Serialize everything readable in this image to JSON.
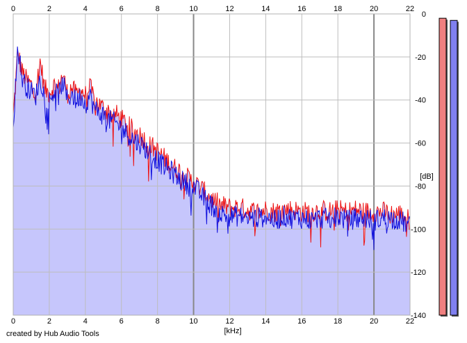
{
  "chart_data": {
    "type": "line",
    "title": "",
    "xlabel": "[kHz]",
    "ylabel": "[dB]",
    "xlim": [
      0,
      22
    ],
    "ylim": [
      -140,
      0
    ],
    "x_ticks": [
      "0",
      "2",
      "4",
      "6",
      "8",
      "10",
      "12",
      "14",
      "16",
      "18",
      "20",
      "22"
    ],
    "y_ticks": [
      "0",
      "-20",
      "-40",
      "-60",
      "-80",
      "-100",
      "-120",
      "-140"
    ],
    "grid": true,
    "series": [
      {
        "color": "#ee1111",
        "x": [
          0,
          0.25,
          0.5,
          0.75,
          1,
          1.25,
          1.5,
          1.75,
          2,
          2.25,
          2.5,
          2.75,
          3,
          3.25,
          3.5,
          3.75,
          4,
          4.25,
          4.5,
          4.75,
          5,
          5.25,
          5.5,
          5.75,
          6,
          6.25,
          6.5,
          6.75,
          7,
          7.25,
          7.5,
          7.75,
          8,
          8.25,
          8.5,
          8.75,
          9,
          9.25,
          9.5,
          9.75,
          10,
          10.5,
          11,
          11.5,
          12,
          12.5,
          13,
          13.5,
          14,
          14.5,
          15,
          15.5,
          16,
          16.5,
          17,
          17.5,
          18,
          18.5,
          19,
          19.5,
          20,
          20.5,
          21,
          21.5,
          22
        ],
        "values": [
          -48,
          -18,
          -27,
          -31,
          -33,
          -36,
          -22,
          -35,
          -37,
          -33,
          -35,
          -28,
          -37,
          -34,
          -38,
          -35,
          -38,
          -34,
          -40,
          -42,
          -44,
          -45,
          -47,
          -47,
          -49,
          -51,
          -53,
          -55,
          -56,
          -58,
          -61,
          -62,
          -64,
          -66,
          -68,
          -70,
          -72,
          -73,
          -75,
          -77,
          -78,
          -82,
          -86,
          -89,
          -90,
          -90,
          -91,
          -92,
          -91,
          -92,
          -91,
          -91,
          -92,
          -92,
          -91,
          -92,
          -91,
          -92,
          -91,
          -92,
          -92,
          -92,
          -93,
          -93,
          -96
        ]
      },
      {
        "color": "#1111dd",
        "x": [
          0,
          0.25,
          0.5,
          0.75,
          1,
          1.25,
          1.5,
          1.75,
          2,
          2.25,
          2.5,
          2.75,
          3,
          3.25,
          3.5,
          3.75,
          4,
          4.25,
          4.5,
          4.75,
          5,
          5.25,
          5.5,
          5.75,
          6,
          6.25,
          6.5,
          6.75,
          7,
          7.25,
          7.5,
          7.75,
          8,
          8.25,
          8.5,
          8.75,
          9,
          9.25,
          9.5,
          9.75,
          10,
          10.5,
          11,
          11.5,
          12,
          12.5,
          13,
          13.5,
          14,
          14.5,
          15,
          15.5,
          16,
          16.5,
          17,
          17.5,
          18,
          18.5,
          19,
          19.5,
          20,
          20.5,
          21,
          21.5,
          22
        ],
        "values": [
          -52,
          -15,
          -30,
          -34,
          -36,
          -38,
          -30,
          -38,
          -40,
          -36,
          -38,
          -32,
          -40,
          -37,
          -41,
          -38,
          -42,
          -38,
          -44,
          -46,
          -47,
          -49,
          -50,
          -51,
          -53,
          -55,
          -57,
          -59,
          -60,
          -62,
          -64,
          -66,
          -68,
          -70,
          -72,
          -73,
          -75,
          -77,
          -78,
          -80,
          -80,
          -85,
          -89,
          -93,
          -94,
          -94,
          -95,
          -95,
          -94,
          -96,
          -94,
          -95,
          -95,
          -96,
          -95,
          -95,
          -94,
          -96,
          -95,
          -95,
          -96,
          -95,
          -95,
          -96,
          -99
        ]
      }
    ],
    "level_meters": [
      {
        "color": "#f08080",
        "value": -2
      },
      {
        "color": "#8080f0",
        "value": -3
      }
    ]
  },
  "footer": {
    "credit": "created by Hub Audio Tools"
  }
}
